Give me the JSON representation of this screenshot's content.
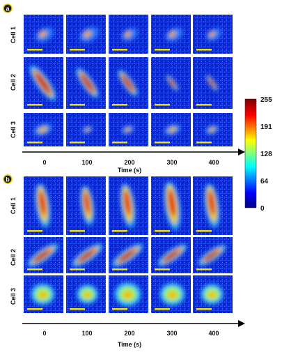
{
  "panels": [
    {
      "label": "a",
      "rows": [
        "Cell 1",
        "Cell 2",
        "Cell 3"
      ],
      "times": [
        "0",
        "100",
        "200",
        "300",
        "400"
      ],
      "axis_title": "Time (s)"
    },
    {
      "label": "b",
      "rows": [
        "Cell 1",
        "Cell 2",
        "Cell 3"
      ],
      "times": [
        "0",
        "100",
        "200",
        "300",
        "400"
      ],
      "axis_title": "Time (s)"
    }
  ],
  "colorbar": {
    "ticks": [
      "255",
      "191",
      "128",
      "64",
      "0"
    ],
    "colors": [
      "#7f0000",
      "#ff0000",
      "#ffff00",
      "#00ffff",
      "#0000ff",
      "#00007f"
    ]
  },
  "colors": {
    "scale_bar": "#f2e000",
    "panel_badge_fill": "#1a1a1a",
    "panel_badge_ring": "#e8c400"
  }
}
